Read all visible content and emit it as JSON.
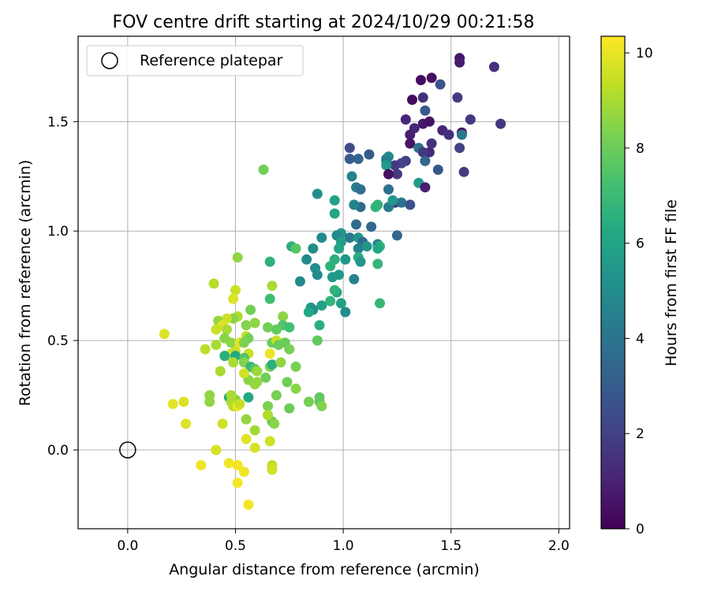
{
  "chart_data": {
    "type": "scatter",
    "title": "FOV centre drift starting at 2024/10/29 00:21:58",
    "xlabel": "Angular distance from reference (arcmin)",
    "ylabel": "Rotation from reference (arcmin)",
    "xlim": [
      -0.23,
      2.05
    ],
    "ylim": [
      -0.36,
      1.89
    ],
    "xticks": [
      "0.0",
      "0.5",
      "1.0",
      "1.5",
      "2.0"
    ],
    "yticks": [
      "0.0",
      "0.5",
      "1.0",
      "1.5"
    ],
    "grid": true,
    "legend": {
      "position": "top-left",
      "entries": [
        "Reference platepar"
      ]
    },
    "reference_point": {
      "x": 0.0,
      "y": 0.0
    },
    "colorbar": {
      "label": "Hours from first FF file",
      "range": [
        0,
        10.35
      ],
      "ticks": [
        "0",
        "2",
        "4",
        "6",
        "8",
        "10"
      ],
      "colormap": "viridis"
    },
    "series": [
      {
        "points": [
          [
            1.54,
            1.79,
            0.6
          ],
          [
            1.54,
            1.77,
            0.8
          ],
          [
            1.7,
            1.75,
            1.5
          ],
          [
            1.36,
            1.69,
            0.3
          ],
          [
            1.41,
            1.7,
            0.4
          ],
          [
            1.45,
            1.67,
            2.6
          ],
          [
            1.32,
            1.6,
            0.3
          ],
          [
            1.37,
            1.61,
            1.4
          ],
          [
            1.53,
            1.61,
            1.8
          ],
          [
            1.38,
            1.55,
            2.9
          ],
          [
            1.29,
            1.51,
            1.1
          ],
          [
            1.37,
            1.49,
            0.7
          ],
          [
            1.4,
            1.5,
            0.5
          ],
          [
            1.33,
            1.47,
            1.2
          ],
          [
            1.31,
            1.44,
            0.9
          ],
          [
            1.59,
            1.51,
            1.7
          ],
          [
            1.46,
            1.46,
            1.1
          ],
          [
            1.49,
            1.44,
            1.4
          ],
          [
            1.55,
            1.45,
            0.3
          ],
          [
            1.55,
            1.44,
            4.2
          ],
          [
            1.73,
            1.49,
            1.7
          ],
          [
            1.31,
            1.4,
            0.6
          ],
          [
            1.41,
            1.4,
            1.5
          ],
          [
            1.35,
            1.38,
            3.9
          ],
          [
            1.54,
            1.38,
            2.0
          ],
          [
            1.4,
            1.36,
            1.2
          ],
          [
            1.37,
            1.36,
            1.7
          ],
          [
            1.03,
            1.38,
            2.4
          ],
          [
            1.12,
            1.35,
            2.9
          ],
          [
            1.07,
            1.33,
            3.4
          ],
          [
            1.03,
            1.33,
            3.0
          ],
          [
            1.2,
            1.33,
            3.9
          ],
          [
            1.21,
            1.34,
            4.9
          ],
          [
            1.29,
            1.32,
            1.9
          ],
          [
            1.27,
            1.31,
            2.1
          ],
          [
            1.38,
            1.32,
            3.4
          ],
          [
            1.2,
            1.32,
            4.4
          ],
          [
            1.24,
            1.3,
            1.7
          ],
          [
            1.2,
            1.3,
            5.6
          ],
          [
            1.44,
            1.28,
            2.8
          ],
          [
            1.25,
            1.26,
            1.7
          ],
          [
            1.56,
            1.27,
            1.8
          ],
          [
            1.21,
            1.26,
            0.4
          ],
          [
            1.04,
            1.25,
            4.6
          ],
          [
            1.35,
            1.22,
            5.6
          ],
          [
            1.06,
            1.2,
            4.3
          ],
          [
            1.08,
            1.19,
            3.8
          ],
          [
            1.21,
            1.19,
            3.8
          ],
          [
            1.38,
            1.2,
            0.9
          ],
          [
            0.88,
            1.17,
            5.0
          ],
          [
            1.08,
            1.11,
            3.6
          ],
          [
            0.96,
            1.14,
            5.9
          ],
          [
            1.05,
            1.12,
            4.6
          ],
          [
            1.16,
            1.12,
            6.7
          ],
          [
            1.24,
            1.13,
            1.6
          ],
          [
            1.27,
            1.13,
            3.8
          ],
          [
            1.21,
            1.11,
            4.3
          ],
          [
            1.31,
            1.12,
            2.6
          ],
          [
            1.23,
            1.14,
            5.5
          ],
          [
            1.15,
            1.11,
            6.7
          ],
          [
            0.63,
            1.28,
            8.1
          ],
          [
            0.96,
            1.08,
            6.1
          ],
          [
            1.13,
            1.02,
            3.5
          ],
          [
            1.06,
            1.03,
            3.6
          ],
          [
            1.25,
            0.98,
            3.4
          ],
          [
            0.99,
            0.99,
            5.4
          ],
          [
            0.97,
            0.98,
            4.9
          ],
          [
            0.9,
            0.97,
            4.9
          ],
          [
            1.03,
            0.97,
            4.2
          ],
          [
            1.07,
            0.97,
            5.4
          ],
          [
            1.09,
            0.95,
            3.7
          ],
          [
            1.16,
            0.94,
            4.6
          ],
          [
            0.99,
            0.95,
            5.8
          ],
          [
            1.17,
            0.93,
            6.7
          ],
          [
            1.16,
            0.92,
            6.2
          ],
          [
            1.11,
            0.93,
            5.4
          ],
          [
            1.07,
            0.92,
            4.6
          ],
          [
            0.76,
            0.93,
            6.5
          ],
          [
            0.78,
            0.92,
            7.6
          ],
          [
            0.86,
            0.92,
            5.0
          ],
          [
            0.98,
            0.92,
            6.1
          ],
          [
            1.07,
            0.88,
            6.5
          ],
          [
            1.01,
            0.87,
            5.4
          ],
          [
            0.96,
            0.87,
            6.5
          ],
          [
            0.83,
            0.87,
            4.9
          ],
          [
            0.66,
            0.86,
            6.6
          ],
          [
            0.51,
            0.88,
            8.6
          ],
          [
            1.08,
            0.86,
            5.5
          ],
          [
            1.16,
            0.85,
            6.8
          ],
          [
            0.87,
            0.83,
            5.0
          ],
          [
            0.88,
            0.8,
            4.9
          ],
          [
            0.94,
            0.84,
            6.6
          ],
          [
            0.98,
            0.8,
            5.6
          ],
          [
            0.95,
            0.79,
            5.6
          ],
          [
            1.05,
            0.78,
            4.6
          ],
          [
            0.8,
            0.77,
            4.9
          ],
          [
            0.97,
            0.72,
            6.1
          ],
          [
            0.96,
            0.73,
            6.7
          ],
          [
            0.94,
            0.68,
            6.7
          ],
          [
            0.85,
            0.65,
            5.6
          ],
          [
            0.86,
            0.64,
            5.0
          ],
          [
            0.84,
            0.63,
            6.2
          ],
          [
            0.9,
            0.66,
            5.9
          ],
          [
            0.99,
            0.67,
            5.9
          ],
          [
            1.01,
            0.63,
            5.0
          ],
          [
            1.17,
            0.67,
            6.9
          ],
          [
            0.66,
            0.69,
            7.1
          ],
          [
            0.57,
            0.64,
            8.1
          ],
          [
            0.4,
            0.76,
            9.2
          ],
          [
            0.5,
            0.73,
            9.5
          ],
          [
            0.49,
            0.69,
            9.8
          ],
          [
            0.67,
            0.75,
            9.0
          ],
          [
            0.51,
            0.61,
            9.1
          ],
          [
            0.49,
            0.6,
            8.5
          ],
          [
            0.46,
            0.6,
            9.6
          ],
          [
            0.42,
            0.59,
            8.7
          ],
          [
            0.44,
            0.57,
            9.8
          ],
          [
            0.41,
            0.55,
            9.5
          ],
          [
            0.46,
            0.55,
            9.0
          ],
          [
            0.55,
            0.57,
            8.4
          ],
          [
            0.65,
            0.56,
            8.1
          ],
          [
            0.72,
            0.61,
            8.6
          ],
          [
            0.59,
            0.58,
            8.6
          ],
          [
            0.72,
            0.57,
            7.5
          ],
          [
            0.75,
            0.56,
            7.2
          ],
          [
            0.69,
            0.55,
            7.8
          ],
          [
            0.89,
            0.57,
            6.5
          ],
          [
            0.55,
            0.52,
            9.4
          ],
          [
            0.56,
            0.51,
            8.2
          ],
          [
            0.48,
            0.49,
            8.6
          ],
          [
            0.45,
            0.51,
            8.5
          ],
          [
            0.52,
            0.49,
            9.9
          ],
          [
            0.54,
            0.49,
            8.3
          ],
          [
            0.67,
            0.49,
            8.0
          ],
          [
            0.69,
            0.5,
            9.5
          ],
          [
            0.73,
            0.49,
            8.0
          ],
          [
            0.88,
            0.5,
            7.8
          ],
          [
            0.36,
            0.46,
            9.3
          ],
          [
            0.41,
            0.48,
            9.0
          ],
          [
            0.5,
            0.45,
            9.6
          ],
          [
            0.56,
            0.44,
            9.5
          ],
          [
            0.48,
            0.44,
            9.3
          ],
          [
            0.47,
            0.43,
            9.8
          ],
          [
            0.45,
            0.43,
            6.5
          ],
          [
            0.5,
            0.43,
            6.2
          ],
          [
            0.54,
            0.42,
            7.5
          ],
          [
            0.66,
            0.44,
            10.1
          ],
          [
            0.7,
            0.48,
            8.0
          ],
          [
            0.75,
            0.46,
            8.2
          ],
          [
            0.54,
            0.4,
            8.4
          ],
          [
            0.49,
            0.4,
            9.0
          ],
          [
            0.57,
            0.38,
            6.9
          ],
          [
            0.59,
            0.37,
            7.6
          ],
          [
            0.66,
            0.38,
            8.3
          ],
          [
            0.67,
            0.39,
            6.5
          ],
          [
            0.71,
            0.4,
            8.6
          ],
          [
            0.6,
            0.36,
            8.8
          ],
          [
            0.64,
            0.33,
            8.1
          ],
          [
            0.56,
            0.32,
            8.5
          ],
          [
            0.6,
            0.31,
            8.7
          ],
          [
            0.59,
            0.3,
            8.7
          ],
          [
            0.43,
            0.36,
            9.0
          ],
          [
            0.54,
            0.35,
            9.6
          ],
          [
            0.38,
            0.22,
            8.6
          ],
          [
            0.38,
            0.25,
            8.6
          ],
          [
            0.74,
            0.31,
            8.1
          ],
          [
            0.78,
            0.38,
            8.2
          ],
          [
            0.78,
            0.28,
            8.5
          ],
          [
            0.69,
            0.25,
            8.2
          ],
          [
            0.56,
            0.24,
            6.2
          ],
          [
            0.47,
            0.24,
            6.3
          ],
          [
            0.5,
            0.23,
            8.5
          ],
          [
            0.48,
            0.22,
            9.0
          ],
          [
            0.49,
            0.2,
            9.2
          ],
          [
            0.51,
            0.2,
            10.1
          ],
          [
            0.52,
            0.21,
            9.5
          ],
          [
            0.48,
            0.25,
            9.0
          ],
          [
            0.65,
            0.2,
            8.3
          ],
          [
            0.67,
            0.13,
            7.9
          ],
          [
            0.65,
            0.16,
            9.1
          ],
          [
            0.75,
            0.19,
            8.0
          ],
          [
            0.84,
            0.22,
            8.2
          ],
          [
            0.89,
            0.24,
            7.8
          ],
          [
            0.89,
            0.22,
            7.8
          ],
          [
            0.9,
            0.2,
            8.4
          ],
          [
            0.59,
            0.09,
            8.9
          ],
          [
            0.68,
            0.12,
            8.5
          ],
          [
            0.55,
            0.14,
            8.7
          ],
          [
            0.44,
            0.12,
            9.6
          ],
          [
            0.21,
            0.21,
            9.9
          ],
          [
            0.26,
            0.22,
            9.8
          ],
          [
            0.27,
            0.12,
            9.8
          ],
          [
            0.55,
            0.05,
            9.9
          ],
          [
            0.66,
            0.04,
            9.6
          ],
          [
            0.59,
            0.01,
            9.7
          ],
          [
            0.41,
            0.0,
            9.7
          ],
          [
            0.47,
            -0.06,
            10.1
          ],
          [
            0.51,
            -0.07,
            10.2
          ],
          [
            0.54,
            -0.1,
            10.1
          ],
          [
            0.34,
            -0.07,
            10.1
          ],
          [
            0.67,
            -0.07,
            9.4
          ],
          [
            0.67,
            -0.09,
            9.6
          ],
          [
            0.51,
            -0.15,
            10.2
          ],
          [
            0.56,
            -0.25,
            10.2
          ],
          [
            0.17,
            0.53,
            9.8
          ]
        ]
      }
    ]
  }
}
